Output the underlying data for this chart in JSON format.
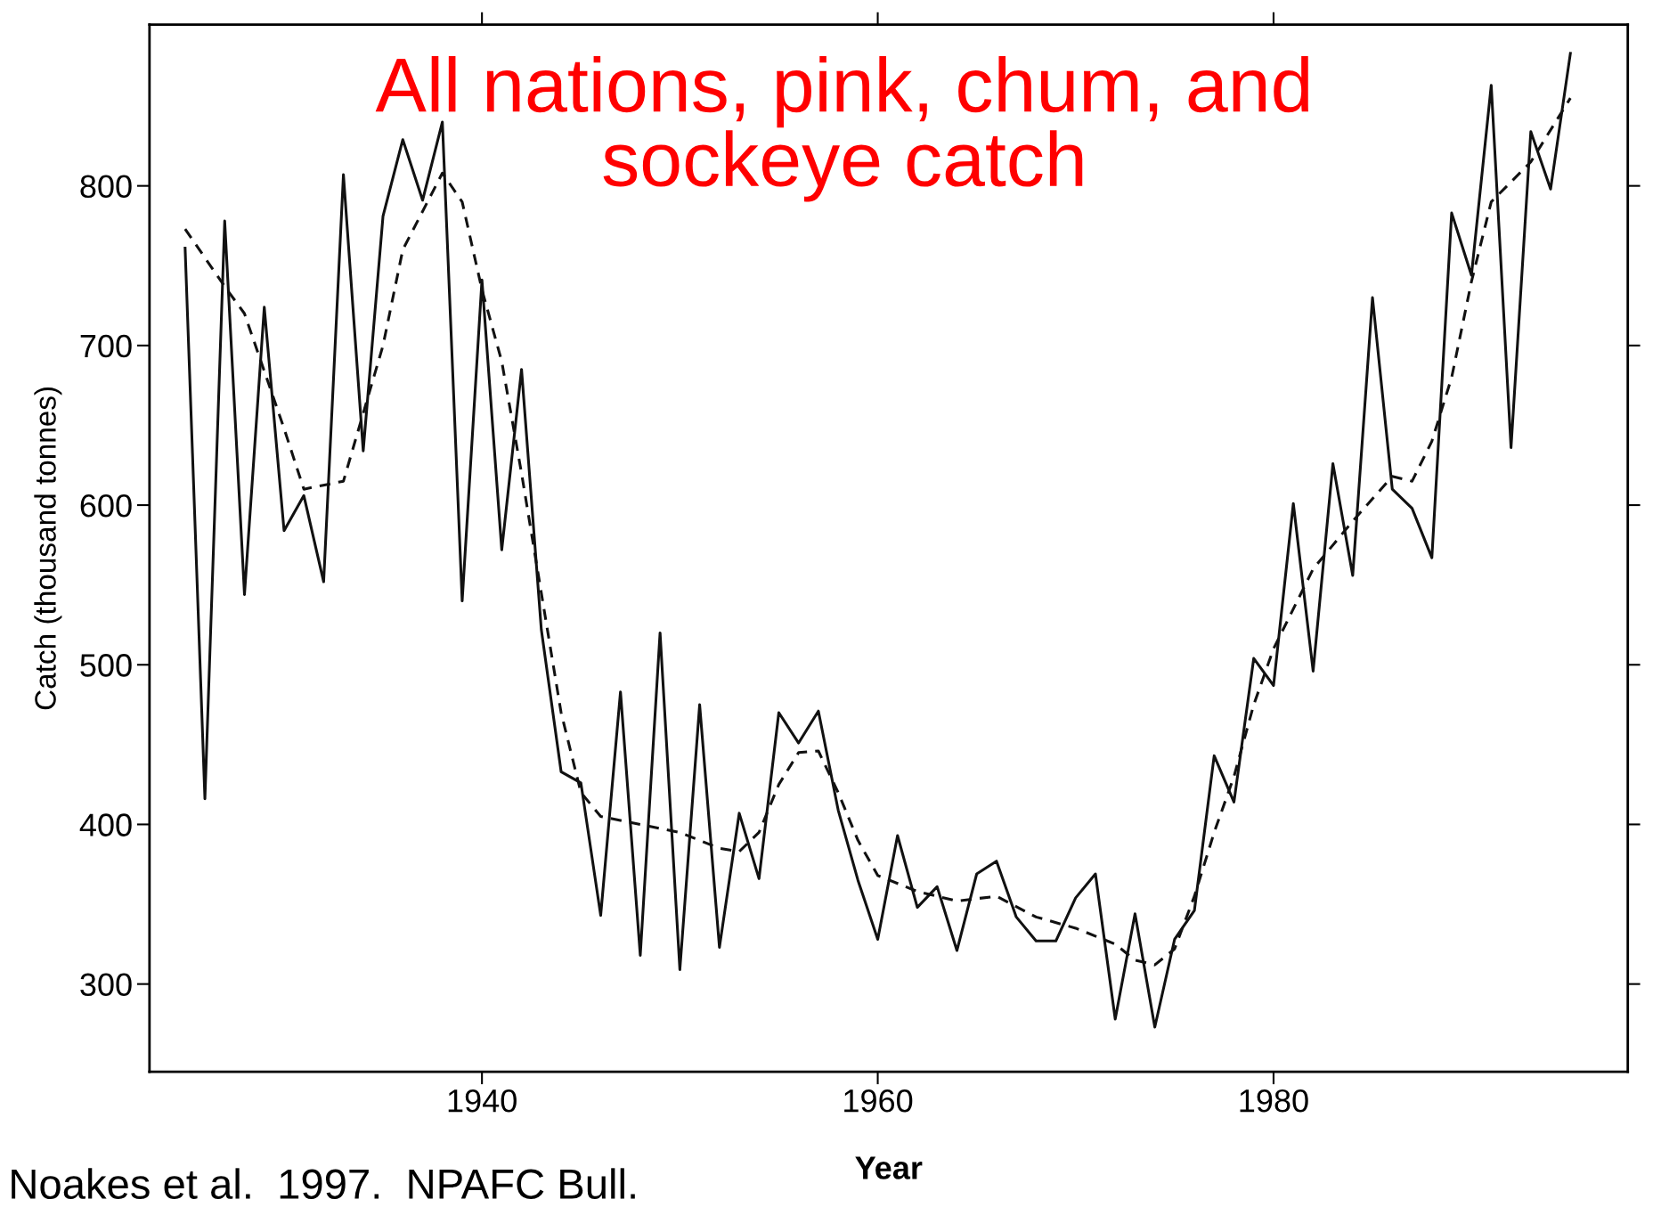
{
  "chart_data": {
    "type": "line",
    "title": "All nations, pink, chum, and\nsockeye catch",
    "xlabel": "Year",
    "ylabel": "Catch (thousand tonnes)",
    "annotations": [
      "Noakes et al.  1997.  NPAFC Bull."
    ],
    "xlim": [
      1923.2,
      1997.9
    ],
    "xticks": [
      1940,
      1960,
      1980
    ],
    "ylim": [
      245,
      901
    ],
    "yticks": [
      300,
      400,
      500,
      600,
      700,
      800
    ],
    "grid": false,
    "legend": false,
    "series": [
      {
        "color": "#111111",
        "line_style": "solid",
        "x": [
          1925,
          1926,
          1927,
          1928,
          1929,
          1930,
          1931,
          1932,
          1933,
          1934,
          1935,
          1936,
          1937,
          1938,
          1939,
          1940,
          1941,
          1942,
          1943,
          1944,
          1945,
          1946,
          1947,
          1948,
          1949,
          1950,
          1951,
          1952,
          1953,
          1954,
          1955,
          1956,
          1957,
          1958,
          1959,
          1960,
          1961,
          1962,
          1963,
          1964,
          1965,
          1966,
          1967,
          1968,
          1969,
          1970,
          1971,
          1972,
          1973,
          1974,
          1975,
          1976,
          1977,
          1978,
          1979,
          1980,
          1981,
          1982,
          1983,
          1984,
          1985,
          1986,
          1987,
          1988,
          1989,
          1990,
          1991,
          1992,
          1993,
          1994,
          1995
        ],
        "values": [
          761,
          416,
          778,
          544,
          724,
          584,
          606,
          552,
          807,
          634,
          781,
          829,
          791,
          840,
          540,
          741,
          572,
          685,
          522,
          433,
          426,
          343,
          483,
          318,
          520,
          309,
          475,
          323,
          407,
          366,
          470,
          451,
          471,
          409,
          365,
          328,
          393,
          348,
          361,
          321,
          369,
          377,
          342,
          327,
          327,
          354,
          369,
          278,
          344,
          273,
          328,
          346,
          443,
          414,
          504,
          487,
          601,
          496,
          626,
          556,
          730,
          610,
          598,
          567,
          783,
          744,
          863,
          636,
          834,
          798,
          883
        ]
      },
      {
        "color": "#111111",
        "line_style": "dashed",
        "x": [
          1925,
          1927,
          1928,
          1930,
          1931,
          1933,
          1935,
          1936,
          1938,
          1939,
          1940,
          1941,
          1942,
          1943,
          1944,
          1945,
          1946,
          1948,
          1950,
          1952,
          1953,
          1954,
          1955,
          1956,
          1957,
          1958,
          1959,
          1960,
          1962,
          1964,
          1966,
          1968,
          1970,
          1972,
          1973,
          1974,
          1975,
          1976,
          1977,
          1978,
          1979,
          1980,
          1982,
          1984,
          1986,
          1987,
          1988,
          1989,
          1990,
          1991,
          1993,
          1995
        ],
        "values": [
          773,
          737,
          720,
          648,
          610,
          615,
          700,
          760,
          808,
          790,
          735,
          690,
          620,
          545,
          470,
          420,
          405,
          400,
          395,
          385,
          383,
          395,
          425,
          445,
          446,
          420,
          390,
          368,
          358,
          352,
          355,
          342,
          335,
          325,
          315,
          312,
          322,
          355,
          395,
          430,
          475,
          510,
          560,
          590,
          618,
          615,
          640,
          680,
          740,
          790,
          815,
          855
        ]
      }
    ]
  }
}
